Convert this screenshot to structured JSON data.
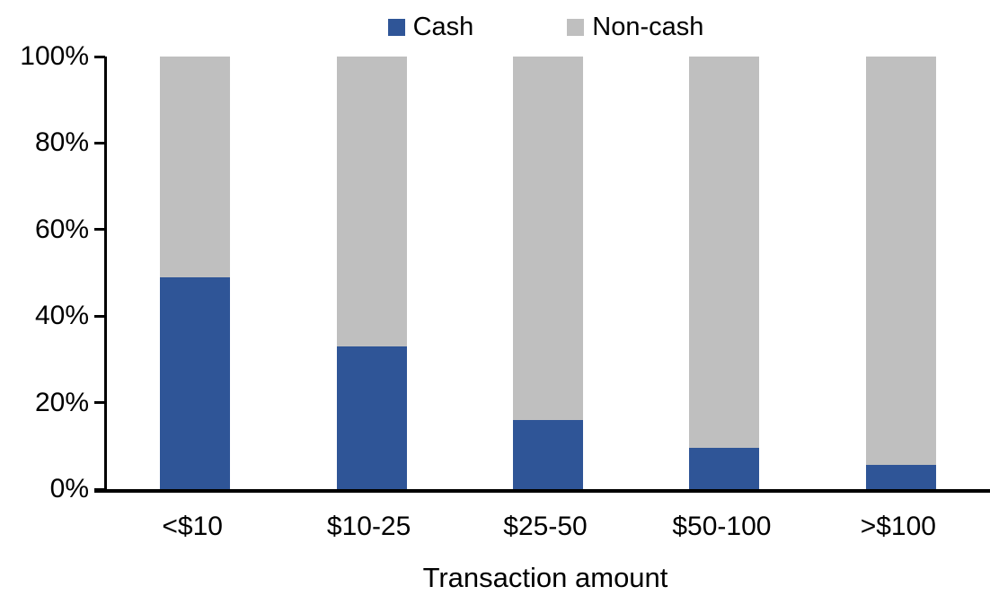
{
  "chart_data": {
    "type": "bar",
    "variant": "stacked-100-percent",
    "title": "",
    "xlabel": "Transaction amount",
    "ylabel": "",
    "categories": [
      "<$10",
      "$10-25",
      "$25-50",
      "$50-100",
      ">$100"
    ],
    "series": [
      {
        "name": "Cash",
        "color": "#2F5597",
        "values": [
          49,
          33,
          16,
          9.5,
          5.5
        ]
      },
      {
        "name": "Non-cash",
        "color": "#BFBFBF",
        "values": [
          51,
          67,
          84,
          90.5,
          94.5
        ]
      }
    ],
    "ylim": [
      0,
      100
    ],
    "yticks": [
      "0%",
      "20%",
      "40%",
      "60%",
      "80%",
      "100%"
    ],
    "grid": false,
    "legend_position": "top-center",
    "axis_color": "#000000",
    "background_color": "#FFFFFF"
  }
}
